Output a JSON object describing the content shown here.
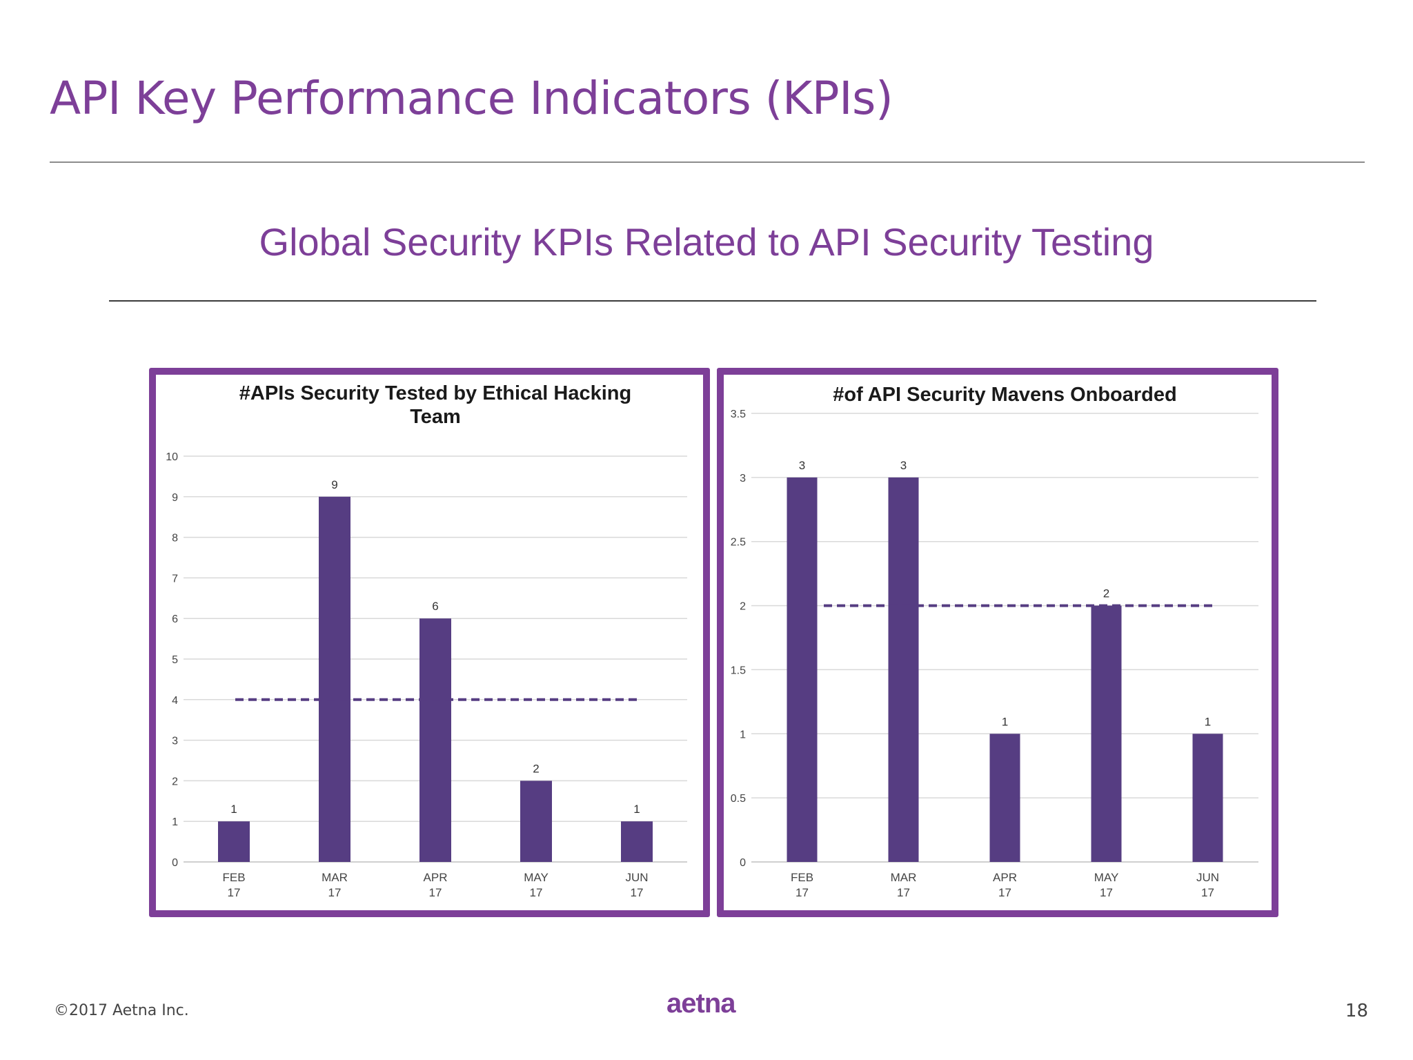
{
  "slide": {
    "title": "API Key Performance Indicators (KPIs)",
    "subtitle": "Global Security KPIs Related to API Security Testing",
    "copyright": "©2017 Aetna Inc.",
    "logo_text": "aetna",
    "page_number": "18"
  },
  "colors": {
    "accent": "#7d3f98",
    "bar": "#563d82",
    "grid": "#d9d9d9"
  },
  "chart_data": [
    {
      "type": "bar",
      "title_lines": [
        "#APIs Security Tested by Ethical Hacking",
        "Team"
      ],
      "categories": [
        [
          "FEB",
          "17"
        ],
        [
          "MAR",
          "17"
        ],
        [
          "APR",
          "17"
        ],
        [
          "MAY",
          "17"
        ],
        [
          "JUN",
          "17"
        ]
      ],
      "values": [
        1,
        9,
        6,
        2,
        1
      ],
      "ylim": [
        0,
        10
      ],
      "yticks": [
        0,
        1,
        2,
        3,
        4,
        5,
        6,
        7,
        8,
        9,
        10
      ],
      "ytick_labels": [
        "0",
        "1",
        "2",
        "3",
        "4",
        "5",
        "6",
        "7",
        "8",
        "9",
        "10"
      ],
      "target_line": 4,
      "grid": true
    },
    {
      "type": "bar",
      "title_lines": [
        "#of API Security Mavens Onboarded"
      ],
      "categories": [
        [
          "FEB",
          "17"
        ],
        [
          "MAR",
          "17"
        ],
        [
          "APR",
          "17"
        ],
        [
          "MAY",
          "17"
        ],
        [
          "JUN",
          "17"
        ]
      ],
      "values": [
        3,
        3,
        1,
        2,
        1
      ],
      "ylim": [
        0,
        3.5
      ],
      "yticks": [
        0,
        0.5,
        1,
        1.5,
        2,
        2.5,
        3,
        3.5
      ],
      "ytick_labels": [
        "0",
        "0.5",
        "1",
        "1.5",
        "2",
        "2.5",
        "3",
        "3.5"
      ],
      "target_line": 2,
      "grid": true
    }
  ]
}
